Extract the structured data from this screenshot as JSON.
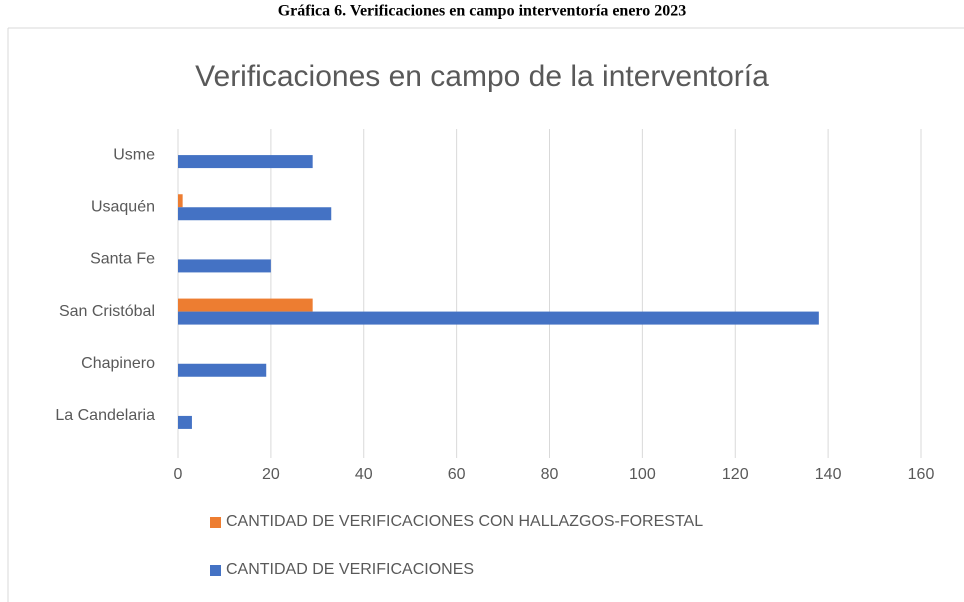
{
  "caption": "Gráfica 6. Verificaciones en campo interventoría enero 2023",
  "chart_data": {
    "type": "hbar",
    "title": "Verificaciones en campo de la interventoría",
    "categories": [
      "Usme",
      "Usaquén",
      "Santa Fe",
      "San Cristóbal",
      "Chapinero",
      "La Candelaria"
    ],
    "series": [
      {
        "name": "CANTIDAD DE VERIFICACIONES CON HALLAZGOS-FORESTAL",
        "color": "#ed7d31",
        "values": [
          0,
          1,
          0,
          29,
          0,
          0
        ]
      },
      {
        "name": "CANTIDAD DE VERIFICACIONES",
        "color": "#4472c4",
        "values": [
          29,
          33,
          20,
          138,
          19,
          3
        ]
      }
    ],
    "xlim": [
      0,
      160
    ],
    "xticks": [
      0,
      20,
      40,
      60,
      80,
      100,
      120,
      140,
      160
    ],
    "grid": true,
    "legend": "bottom"
  }
}
